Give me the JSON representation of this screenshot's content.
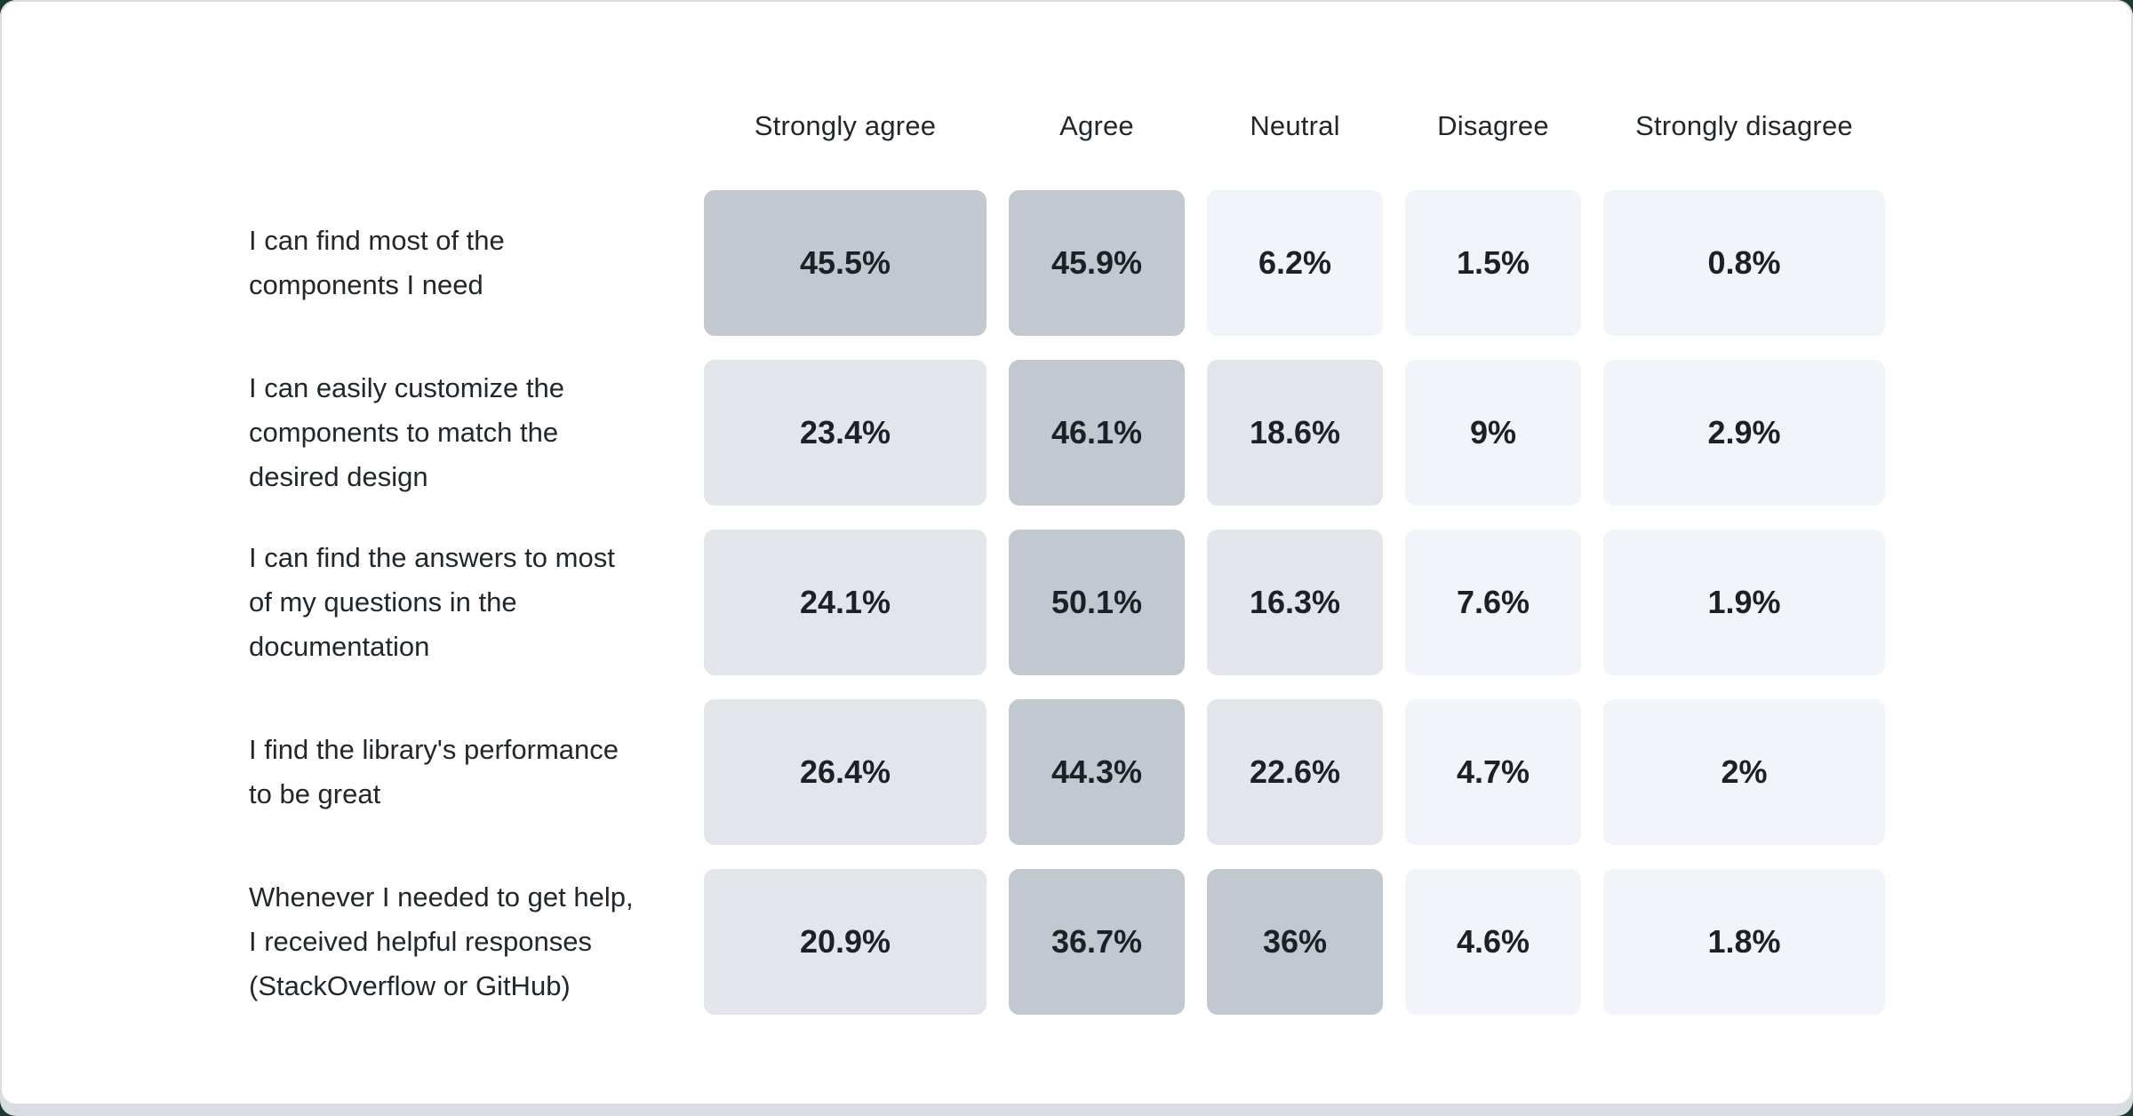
{
  "colors": {
    "backdrop": "#1e3932",
    "page_bg": "#d9dce0",
    "card_bg": "#ffffff",
    "card_border": "#d8dde2",
    "header_text": "#21272a",
    "label_text": "#21272a",
    "value_text": "#1b2126",
    "heat_high": "#c2c8d0",
    "heat_mid": "#e2e5ea",
    "heat_low": "#f1f4f8"
  },
  "chart_data": {
    "type": "heatmap",
    "title": "",
    "legend_position": "none",
    "grid": "off",
    "columns": [
      "Strongly agree",
      "Agree",
      "Neutral",
      "Disagree",
      "Strongly disagree"
    ],
    "rows": [
      {
        "label": "I can find most of the components I need",
        "label_lines": [
          "I can find most of the",
          "components I need"
        ],
        "values": [
          45.5,
          45.9,
          6.2,
          1.5,
          0.8
        ],
        "display": [
          "45.5%",
          "45.9%",
          "6.2%",
          "1.5%",
          "0.8%"
        ]
      },
      {
        "label": "I can easily customize the components to match the desired design",
        "label_lines": [
          "I can easily customize the",
          "components to match the",
          "desired design"
        ],
        "values": [
          23.4,
          46.1,
          18.6,
          9,
          2.9
        ],
        "display": [
          "23.4%",
          "46.1%",
          "18.6%",
          "9%",
          "2.9%"
        ]
      },
      {
        "label": "I can find the answers to most of my questions in the documentation",
        "label_lines": [
          "I can find the answers to most",
          "of my questions in the",
          "documentation"
        ],
        "values": [
          24.1,
          50.1,
          16.3,
          7.6,
          1.9
        ],
        "display": [
          "24.1%",
          "50.1%",
          "16.3%",
          "7.6%",
          "1.9%"
        ]
      },
      {
        "label": "I find the library's performance to be great",
        "label_lines": [
          "I find the library's performance",
          "to be great"
        ],
        "values": [
          26.4,
          44.3,
          22.6,
          4.7,
          2
        ],
        "display": [
          "26.4%",
          "44.3%",
          "22.6%",
          "4.7%",
          "2%"
        ]
      },
      {
        "label": "Whenever I needed to get help, I received helpful responses (StackOverflow or GitHub)",
        "label_lines": [
          "Whenever I needed to get help,",
          "I received helpful responses",
          "(StackOverflow or GitHub)"
        ],
        "values": [
          20.9,
          36.7,
          36,
          4.6,
          1.8
        ],
        "display": [
          "20.9%",
          "36.7%",
          "36%",
          "4.6%",
          "1.8%"
        ]
      }
    ],
    "heat_bins": [
      {
        "min_value": 30,
        "color_key": "heat_high"
      },
      {
        "min_value": 10,
        "color_key": "heat_mid"
      },
      {
        "min_value": 0,
        "color_key": "heat_low"
      }
    ]
  }
}
